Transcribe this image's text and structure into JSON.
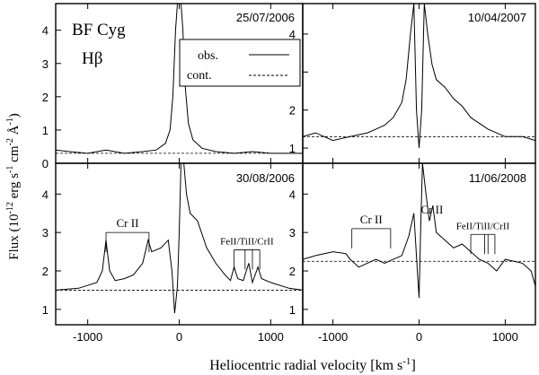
{
  "chart_data": {
    "type": "line",
    "figure": {
      "star": "BF Cyg",
      "line_name": "Hβ",
      "xlabel_main": "Heliocentric radial velocity [km s",
      "xlabel_exp": "-1",
      "xlabel_close": "]",
      "ylabel_main": "Flux (10",
      "ylabel_parts": [
        "-12",
        " erg s",
        "-1",
        " cm",
        "-2",
        " Å",
        "-1",
        ")"
      ],
      "legend": [
        "obs.",
        "cont."
      ]
    },
    "panels": [
      {
        "date": "25/07/2006",
        "xlim": [
          -1350,
          1350
        ],
        "ylim": [
          0,
          4.8
        ],
        "yticks": [
          0,
          1,
          2,
          3,
          4
        ],
        "xticks": [
          -1000,
          0,
          1000
        ],
        "continuum": 0.3,
        "series": {
          "name": "obs.",
          "x": [
            -1350,
            -1200,
            -1000,
            -800,
            -600,
            -400,
            -250,
            -150,
            -100,
            -70,
            -40,
            -20,
            0,
            20,
            40,
            60,
            100,
            150,
            250,
            400,
            600,
            800,
            1000,
            1200,
            1350
          ],
          "y": [
            0.4,
            0.35,
            0.3,
            0.4,
            0.3,
            0.35,
            0.4,
            0.6,
            1.0,
            2.0,
            4.0,
            4.8,
            4.8,
            4.8,
            4.0,
            2.5,
            1.2,
            0.7,
            0.45,
            0.35,
            0.3,
            0.35,
            0.3,
            0.3,
            0.3
          ]
        }
      },
      {
        "date": "10/04/2007",
        "xlim": [
          -1350,
          1350
        ],
        "ylim": [
          0.6,
          4.8
        ],
        "yticks": [
          1,
          2,
          3,
          4
        ],
        "xticks": [
          -1000,
          0,
          1000
        ],
        "continuum": 1.3,
        "series": {
          "name": "obs.",
          "x": [
            -1350,
            -1200,
            -1000,
            -800,
            -600,
            -500,
            -400,
            -300,
            -200,
            -150,
            -100,
            -60,
            -30,
            0,
            30,
            60,
            100,
            150,
            200,
            300,
            400,
            500,
            600,
            800,
            1000,
            1200,
            1350
          ],
          "y": [
            1.3,
            1.4,
            1.2,
            1.3,
            1.4,
            1.5,
            1.6,
            1.8,
            2.2,
            2.8,
            4.0,
            4.8,
            2.0,
            1.0,
            2.0,
            4.8,
            4.0,
            3.2,
            2.8,
            2.6,
            2.3,
            2.1,
            1.8,
            1.5,
            1.3,
            1.3,
            1.2
          ]
        }
      },
      {
        "date": "30/08/2006",
        "xlim": [
          -1350,
          1350
        ],
        "ylim": [
          0.6,
          4.8
        ],
        "yticks": [
          1,
          2,
          3,
          4
        ],
        "xticks": [
          -1000,
          0,
          1000
        ],
        "continuum": 1.5,
        "annotations": [
          {
            "text": "Cr II",
            "x_from": -800,
            "x_to": -330,
            "y": 3.0,
            "markers": [
              -800,
              -330
            ]
          },
          {
            "text": "FeII/TiII/CrII",
            "x_from": 600,
            "x_to": 880,
            "y": 2.55,
            "markers": [
              600,
              720,
              800,
              880
            ]
          }
        ],
        "series": {
          "name": "obs.",
          "x": [
            -1350,
            -1100,
            -900,
            -840,
            -800,
            -760,
            -700,
            -600,
            -500,
            -400,
            -340,
            -300,
            -200,
            -120,
            -80,
            -50,
            -20,
            0,
            20,
            50,
            80,
            120,
            200,
            300,
            400,
            500,
            560,
            600,
            640,
            700,
            760,
            800,
            860,
            900,
            1000,
            1200,
            1350
          ],
          "y": [
            1.5,
            1.55,
            1.7,
            2.0,
            2.8,
            2.0,
            1.75,
            1.8,
            1.9,
            2.2,
            2.8,
            2.5,
            2.6,
            2.8,
            2.0,
            0.9,
            1.6,
            3.0,
            4.8,
            4.8,
            4.0,
            3.5,
            3.3,
            2.6,
            2.2,
            1.9,
            1.75,
            2.1,
            1.8,
            1.75,
            2.2,
            1.7,
            2.1,
            1.8,
            1.7,
            1.55,
            1.5
          ]
        }
      },
      {
        "date": "11/06/2008",
        "xlim": [
          -1350,
          1350
        ],
        "ylim": [
          0.6,
          4.8
        ],
        "yticks": [
          1,
          2,
          3,
          4
        ],
        "xticks": [
          -1000,
          0,
          1000
        ],
        "continuum": 2.25,
        "annotations": [
          {
            "text": "Cr II",
            "x_from": -780,
            "x_to": -330,
            "y": 3.1,
            "markers": [
              -780,
              -330
            ]
          },
          {
            "text": "Cr II",
            "x_from": 150,
            "x_to": 150,
            "y": 3.35,
            "markers": []
          },
          {
            "text": "FeII/TiII/CrII",
            "x_from": 600,
            "x_to": 880,
            "y": 2.95,
            "markers": [
              600,
              760,
              800,
              880
            ]
          }
        ],
        "series": {
          "name": "obs.",
          "x": [
            -1350,
            -1200,
            -1000,
            -850,
            -800,
            -700,
            -600,
            -500,
            -400,
            -300,
            -200,
            -120,
            -60,
            -20,
            0,
            20,
            40,
            80,
            120,
            160,
            200,
            300,
            400,
            500,
            600,
            700,
            800,
            900,
            1000,
            1200,
            1300,
            1350
          ],
          "y": [
            2.3,
            2.4,
            2.5,
            2.45,
            2.3,
            2.1,
            2.2,
            2.3,
            2.2,
            2.3,
            2.4,
            2.9,
            3.5,
            2.0,
            1.3,
            3.2,
            4.8,
            4.0,
            3.3,
            3.7,
            3.0,
            2.8,
            2.6,
            2.7,
            2.5,
            2.3,
            2.2,
            2.0,
            2.3,
            2.2,
            2.0,
            1.6
          ]
        }
      }
    ]
  }
}
